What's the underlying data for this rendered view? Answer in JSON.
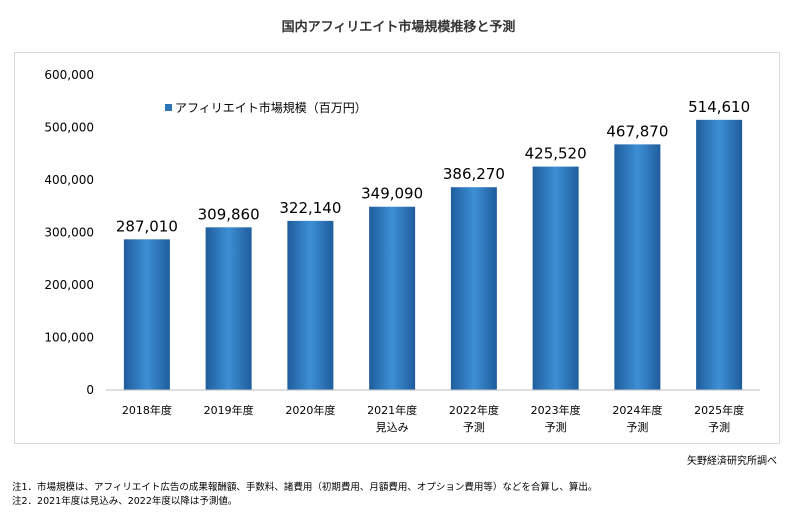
{
  "source": "矢野経済研究所調べ",
  "notes": [
    "注1．市場規模は、アフィリエイト広告の成果報酬額、手数料、諸費用（初期費用、月額費用、オプション費用等）などを合算し、算出。",
    "注2．2021年度は見込み、2022年度以降は予測値。"
  ],
  "chart_data": {
    "type": "bar",
    "title": "国内アフィリエイト市場規模推移と予測",
    "categories": [
      [
        "2018年度"
      ],
      [
        "2019年度"
      ],
      [
        "2020年度"
      ],
      [
        "2021年度",
        "見込み"
      ],
      [
        "2022年度",
        "予測"
      ],
      [
        "2023年度",
        "予測"
      ],
      [
        "2024年度",
        "予測"
      ],
      [
        "2025年度",
        "予測"
      ]
    ],
    "series": [
      {
        "name": "アフィリエイト市場規模（百万円）",
        "values": [
          287010,
          309860,
          322140,
          349090,
          386270,
          425520,
          467870,
          514610
        ],
        "color": "#2e75b6"
      }
    ],
    "data_labels": [
      "287,010",
      "309,860",
      "322,140",
      "349,090",
      "386,270",
      "425,520",
      "467,870",
      "514,610"
    ],
    "ylim": [
      0,
      600000
    ],
    "yticks": [
      0,
      100000,
      200000,
      300000,
      400000,
      500000,
      600000
    ],
    "ytick_labels": [
      "0",
      "100,000",
      "200,000",
      "300,000",
      "400,000",
      "500,000",
      "600,000"
    ],
    "grid": false,
    "legend": "top-left",
    "xlabel": "",
    "ylabel": ""
  }
}
